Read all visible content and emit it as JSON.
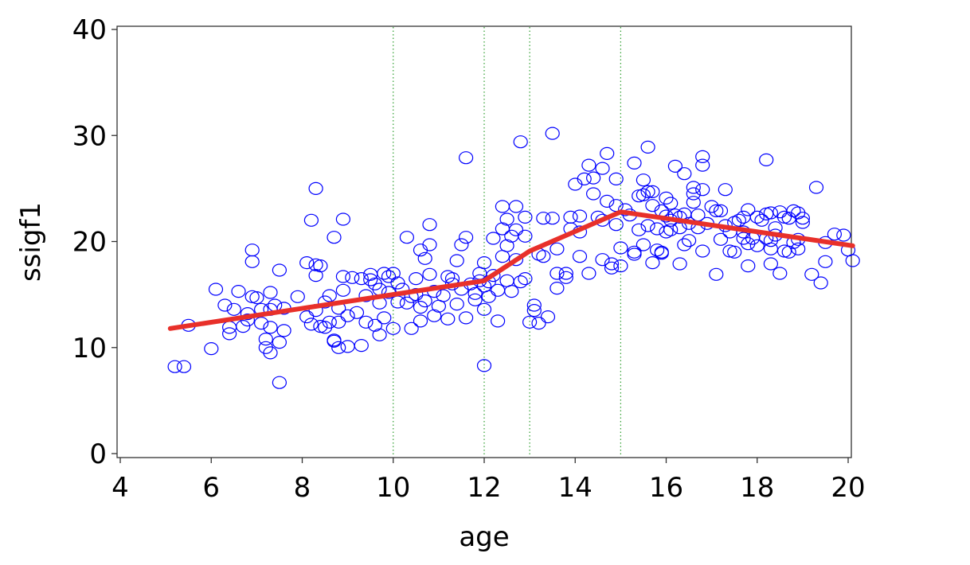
{
  "chart_data": {
    "type": "scatter",
    "title": "",
    "xlabel": "age",
    "ylabel": "ssigf1",
    "xlim": [
      4,
      20
    ],
    "ylim": [
      0,
      40
    ],
    "x_ticks": [
      4,
      6,
      8,
      10,
      12,
      14,
      16,
      18,
      20
    ],
    "y_ticks": [
      0,
      10,
      20,
      30,
      40
    ],
    "reference_lines_x": [
      10,
      12,
      13,
      15
    ],
    "colors": {
      "points": "#0000ff",
      "fit_line": "#e8302a",
      "ref_lines": "#2e9e2e"
    },
    "series": [
      {
        "type": "scatter",
        "points": [
          [
            5.2,
            8.2
          ],
          [
            5.4,
            8.2
          ],
          [
            5.5,
            12.1
          ],
          [
            6.0,
            9.9
          ],
          [
            6.1,
            15.5
          ],
          [
            6.3,
            14.0
          ],
          [
            6.4,
            11.9
          ],
          [
            6.4,
            11.3
          ],
          [
            6.5,
            13.6
          ],
          [
            6.6,
            15.3
          ],
          [
            6.7,
            12.0
          ],
          [
            6.8,
            12.6
          ],
          [
            6.8,
            13.2
          ],
          [
            6.9,
            14.8
          ],
          [
            6.9,
            18.1
          ],
          [
            6.9,
            19.2
          ],
          [
            7.0,
            14.7
          ],
          [
            7.1,
            13.6
          ],
          [
            7.1,
            12.3
          ],
          [
            7.2,
            10.8
          ],
          [
            7.2,
            10.0
          ],
          [
            7.3,
            9.5
          ],
          [
            7.3,
            11.9
          ],
          [
            7.3,
            13.6
          ],
          [
            7.3,
            15.2
          ],
          [
            7.4,
            14.0
          ],
          [
            7.5,
            10.5
          ],
          [
            7.5,
            17.3
          ],
          [
            7.6,
            11.6
          ],
          [
            7.6,
            13.7
          ],
          [
            7.5,
            6.7
          ],
          [
            7.9,
            14.8
          ],
          [
            8.1,
            18.0
          ],
          [
            8.1,
            12.9
          ],
          [
            8.2,
            22.0
          ],
          [
            8.2,
            12.2
          ],
          [
            8.3,
            16.8
          ],
          [
            8.3,
            13.5
          ],
          [
            8.3,
            17.8
          ],
          [
            8.3,
            25.0
          ],
          [
            8.4,
            17.7
          ],
          [
            8.4,
            12.0
          ],
          [
            8.5,
            14.3
          ],
          [
            8.5,
            11.9
          ],
          [
            8.6,
            12.4
          ],
          [
            8.6,
            14.9
          ],
          [
            8.7,
            10.7
          ],
          [
            8.7,
            10.6
          ],
          [
            8.7,
            20.4
          ],
          [
            8.8,
            12.4
          ],
          [
            8.8,
            13.7
          ],
          [
            8.8,
            10.0
          ],
          [
            8.9,
            22.1
          ],
          [
            8.9,
            15.4
          ],
          [
            8.9,
            16.7
          ],
          [
            9.0,
            10.1
          ],
          [
            9.0,
            13.0
          ],
          [
            9.1,
            16.6
          ],
          [
            9.2,
            13.3
          ],
          [
            9.3,
            10.2
          ],
          [
            9.3,
            16.5
          ],
          [
            9.4,
            14.9
          ],
          [
            9.4,
            12.4
          ],
          [
            9.5,
            16.9
          ],
          [
            9.5,
            16.4
          ],
          [
            9.6,
            16.0
          ],
          [
            9.6,
            12.1
          ],
          [
            9.7,
            11.2
          ],
          [
            9.7,
            14.2
          ],
          [
            9.7,
            15.5
          ],
          [
            9.8,
            17.0
          ],
          [
            9.8,
            12.8
          ],
          [
            9.9,
            16.7
          ],
          [
            9.9,
            15.2
          ],
          [
            10.0,
            17.0
          ],
          [
            10.0,
            11.8
          ],
          [
            10.1,
            14.3
          ],
          [
            10.1,
            16.1
          ],
          [
            10.2,
            15.5
          ],
          [
            10.3,
            20.4
          ],
          [
            10.3,
            14.2
          ],
          [
            10.4,
            14.8
          ],
          [
            10.4,
            11.8
          ],
          [
            10.5,
            16.5
          ],
          [
            10.5,
            15.0
          ],
          [
            10.6,
            19.2
          ],
          [
            10.6,
            12.5
          ],
          [
            10.6,
            13.8
          ],
          [
            10.7,
            18.4
          ],
          [
            10.7,
            14.4
          ],
          [
            10.8,
            16.9
          ],
          [
            10.8,
            21.6
          ],
          [
            10.8,
            19.7
          ],
          [
            10.9,
            13.0
          ],
          [
            10.9,
            15.3
          ],
          [
            11.0,
            13.9
          ],
          [
            11.1,
            14.9
          ],
          [
            11.2,
            16.7
          ],
          [
            11.2,
            12.7
          ],
          [
            11.3,
            16.0
          ],
          [
            11.3,
            16.5
          ],
          [
            11.4,
            14.1
          ],
          [
            11.4,
            18.2
          ],
          [
            11.5,
            19.7
          ],
          [
            11.5,
            15.5
          ],
          [
            11.6,
            20.4
          ],
          [
            11.6,
            27.9
          ],
          [
            11.6,
            12.8
          ],
          [
            11.7,
            16.0
          ],
          [
            11.8,
            15.1
          ],
          [
            11.8,
            14.5
          ],
          [
            11.9,
            16.3
          ],
          [
            11.9,
            17.0
          ],
          [
            12.0,
            13.6
          ],
          [
            12.0,
            15.8
          ],
          [
            12.0,
            18.0
          ],
          [
            12.0,
            8.3
          ],
          [
            12.1,
            14.8
          ],
          [
            12.1,
            16.2
          ],
          [
            12.2,
            20.3
          ],
          [
            12.2,
            16.8
          ],
          [
            12.3,
            12.5
          ],
          [
            12.3,
            15.4
          ],
          [
            12.4,
            18.6
          ],
          [
            12.4,
            23.3
          ],
          [
            12.4,
            21.2
          ],
          [
            12.5,
            16.3
          ],
          [
            12.5,
            19.6
          ],
          [
            12.5,
            22.1
          ],
          [
            12.6,
            20.5
          ],
          [
            12.6,
            15.3
          ],
          [
            12.7,
            18.3
          ],
          [
            12.7,
            23.3
          ],
          [
            12.7,
            21.1
          ],
          [
            12.8,
            29.4
          ],
          [
            12.8,
            16.2
          ],
          [
            12.9,
            16.5
          ],
          [
            12.9,
            22.3
          ],
          [
            12.9,
            20.5
          ],
          [
            13.0,
            12.4
          ],
          [
            13.1,
            13.5
          ],
          [
            13.1,
            14.0
          ],
          [
            13.2,
            12.3
          ],
          [
            13.2,
            18.8
          ],
          [
            13.3,
            22.2
          ],
          [
            13.3,
            18.6
          ],
          [
            13.4,
            12.9
          ],
          [
            13.5,
            30.2
          ],
          [
            13.5,
            22.2
          ],
          [
            13.6,
            15.6
          ],
          [
            13.6,
            17.0
          ],
          [
            13.6,
            19.3
          ],
          [
            13.8,
            16.6
          ],
          [
            13.8,
            17.0
          ],
          [
            13.9,
            21.2
          ],
          [
            13.9,
            22.3
          ],
          [
            14.0,
            25.4
          ],
          [
            14.1,
            22.4
          ],
          [
            14.1,
            20.9
          ],
          [
            14.1,
            18.6
          ],
          [
            14.2,
            25.9
          ],
          [
            14.3,
            27.2
          ],
          [
            14.3,
            17.0
          ],
          [
            14.4,
            26.0
          ],
          [
            14.4,
            24.5
          ],
          [
            14.5,
            22.3
          ],
          [
            14.6,
            22.0
          ],
          [
            14.6,
            26.9
          ],
          [
            14.6,
            18.3
          ],
          [
            14.7,
            28.3
          ],
          [
            14.7,
            23.8
          ],
          [
            14.8,
            17.9
          ],
          [
            14.8,
            17.5
          ],
          [
            14.9,
            21.6
          ],
          [
            14.9,
            23.4
          ],
          [
            14.9,
            25.9
          ],
          [
            15.0,
            17.7
          ],
          [
            15.0,
            19.4
          ],
          [
            15.1,
            23.0
          ],
          [
            15.2,
            22.5
          ],
          [
            15.3,
            19.0
          ],
          [
            15.3,
            18.8
          ],
          [
            15.3,
            27.4
          ],
          [
            15.4,
            21.1
          ],
          [
            15.4,
            24.3
          ],
          [
            15.5,
            24.4
          ],
          [
            15.5,
            19.7
          ],
          [
            15.5,
            25.8
          ],
          [
            15.6,
            24.7
          ],
          [
            15.6,
            21.5
          ],
          [
            15.6,
            28.9
          ],
          [
            15.7,
            23.4
          ],
          [
            15.7,
            24.7
          ],
          [
            15.7,
            18.0
          ],
          [
            15.8,
            19.2
          ],
          [
            15.8,
            21.2
          ],
          [
            15.9,
            22.9
          ],
          [
            15.9,
            19.0
          ],
          [
            15.9,
            18.9
          ],
          [
            16.0,
            22.4
          ],
          [
            16.0,
            24.1
          ],
          [
            16.0,
            20.9
          ],
          [
            16.1,
            23.6
          ],
          [
            16.1,
            22.0
          ],
          [
            16.1,
            21.1
          ],
          [
            16.2,
            27.1
          ],
          [
            16.2,
            22.5
          ],
          [
            16.3,
            21.3
          ],
          [
            16.3,
            22.3
          ],
          [
            16.3,
            17.9
          ],
          [
            16.4,
            19.7
          ],
          [
            16.4,
            22.6
          ],
          [
            16.4,
            26.4
          ],
          [
            16.5,
            20.1
          ],
          [
            16.5,
            21.7
          ],
          [
            16.6,
            23.7
          ],
          [
            16.6,
            25.1
          ],
          [
            16.6,
            24.5
          ],
          [
            16.7,
            22.5
          ],
          [
            16.7,
            21.3
          ],
          [
            16.8,
            27.2
          ],
          [
            16.8,
            28.0
          ],
          [
            16.8,
            24.9
          ],
          [
            16.8,
            19.1
          ],
          [
            16.9,
            21.7
          ],
          [
            17.0,
            23.3
          ],
          [
            17.1,
            22.9
          ],
          [
            17.1,
            16.9
          ],
          [
            17.2,
            20.2
          ],
          [
            17.2,
            22.9
          ],
          [
            17.3,
            24.9
          ],
          [
            17.3,
            21.5
          ],
          [
            17.4,
            19.1
          ],
          [
            17.4,
            20.9
          ],
          [
            17.5,
            19.0
          ],
          [
            17.5,
            21.8
          ],
          [
            17.6,
            22.0
          ],
          [
            17.7,
            22.3
          ],
          [
            17.7,
            20.3
          ],
          [
            17.7,
            20.9
          ],
          [
            17.8,
            23.0
          ],
          [
            17.8,
            17.7
          ],
          [
            17.8,
            19.8
          ],
          [
            17.9,
            20.3
          ],
          [
            18.0,
            22.3
          ],
          [
            18.0,
            19.6
          ],
          [
            18.1,
            22.0
          ],
          [
            18.2,
            22.6
          ],
          [
            18.2,
            20.3
          ],
          [
            18.2,
            27.7
          ],
          [
            18.3,
            19.3
          ],
          [
            18.3,
            20.1
          ],
          [
            18.3,
            22.7
          ],
          [
            18.3,
            17.9
          ],
          [
            18.4,
            21.3
          ],
          [
            18.4,
            20.6
          ],
          [
            18.5,
            22.8
          ],
          [
            18.5,
            17.0
          ],
          [
            18.6,
            22.3
          ],
          [
            18.6,
            19.1
          ],
          [
            18.7,
            19.0
          ],
          [
            18.7,
            22.2
          ],
          [
            18.8,
            22.9
          ],
          [
            18.8,
            19.9
          ],
          [
            18.9,
            19.3
          ],
          [
            18.9,
            22.7
          ],
          [
            18.9,
            20.2
          ],
          [
            19.0,
            21.8
          ],
          [
            19.0,
            22.2
          ],
          [
            19.2,
            16.9
          ],
          [
            19.3,
            25.1
          ],
          [
            19.4,
            16.1
          ],
          [
            19.5,
            18.1
          ],
          [
            19.5,
            19.9
          ],
          [
            19.7,
            20.7
          ],
          [
            19.9,
            20.6
          ],
          [
            20.0,
            19.2
          ],
          [
            20.1,
            18.2
          ]
        ]
      },
      {
        "type": "line",
        "points": [
          [
            5.1,
            11.8
          ],
          [
            10.0,
            15.0
          ],
          [
            12.0,
            16.3
          ],
          [
            13.0,
            19.1
          ],
          [
            15.0,
            22.8
          ],
          [
            20.1,
            19.6
          ]
        ]
      }
    ]
  }
}
